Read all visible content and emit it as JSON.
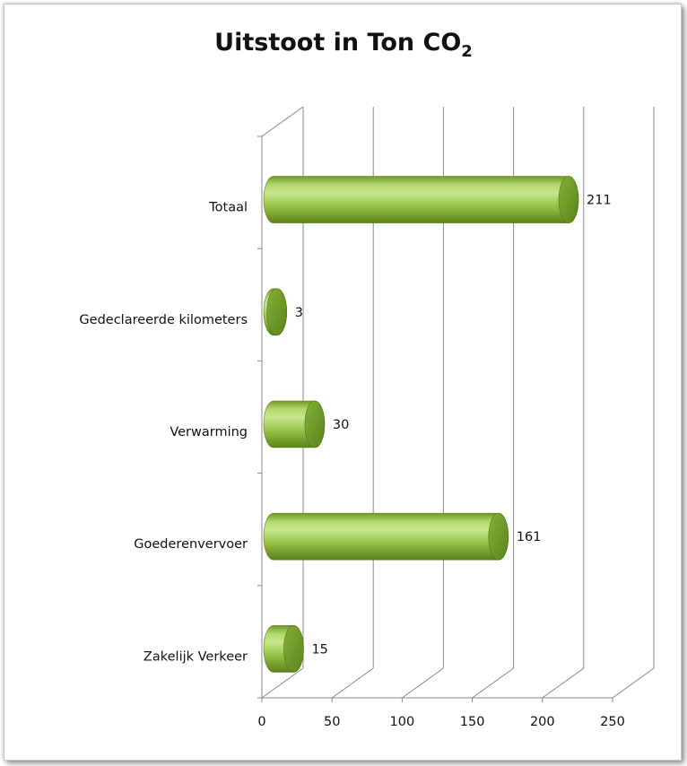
{
  "chart_data": {
    "type": "bar",
    "orientation": "horizontal",
    "title": "Uitstoot in Ton CO",
    "title_subscript": "2",
    "categories": [
      "Totaal",
      "Gedeclareerde kilometers",
      "Verwarming",
      "Goederenvervoer",
      "Zakelijk Verkeer"
    ],
    "values": [
      211,
      3,
      30,
      161,
      15
    ],
    "data_labels": [
      "211",
      "3",
      "30",
      "161",
      "15"
    ],
    "xlim": [
      0,
      250
    ],
    "x_ticks": [
      "0",
      "50",
      "100",
      "150",
      "200",
      "250"
    ],
    "x_tick_values": [
      0,
      50,
      100,
      150,
      200,
      250
    ],
    "xlabel": "",
    "ylabel": "",
    "grid": true,
    "legend": "none",
    "bar_shape": "cylinder",
    "bar_color": "#94c045",
    "bar_dark": "#5f8a1f",
    "bar_light": "#c9e68e"
  }
}
